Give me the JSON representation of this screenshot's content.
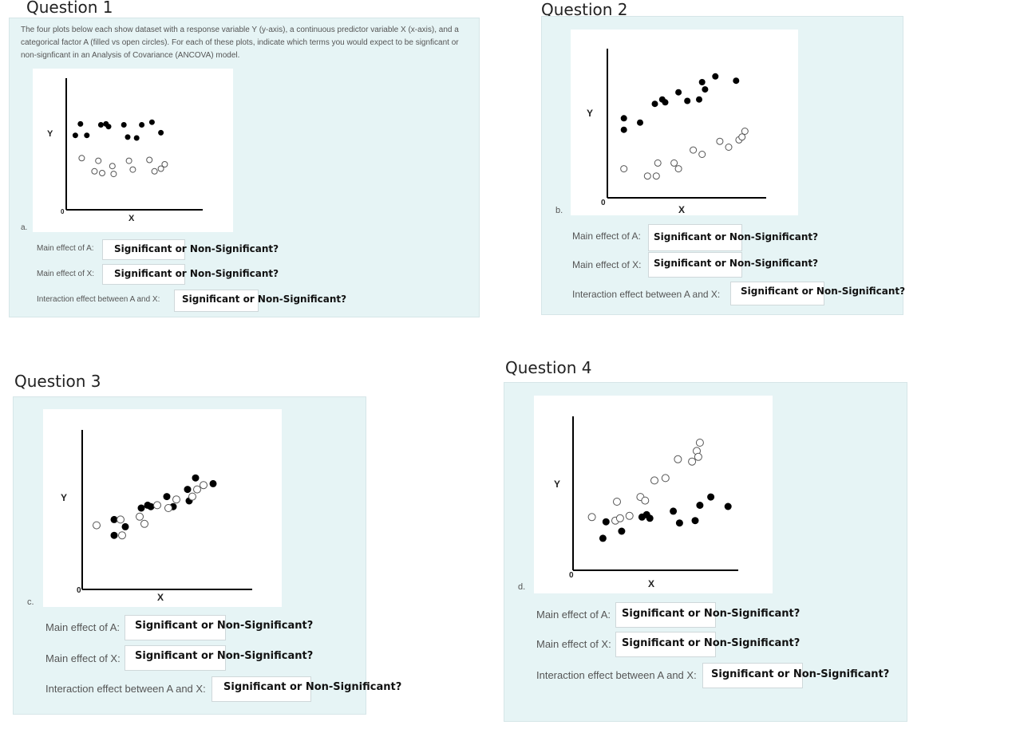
{
  "questions": [
    {
      "title": "Question 1",
      "intro": "The four plots below each show dataset with a response variable Y (y-axis), a continuous predictor variable X (x-axis), and a categorical factor A (filled vs open circles). For each of these plots, indicate which terms you would expect to be signficant or non-signficant in an Analysis of Covariance (ANCOVA) model.",
      "letter": "a.",
      "ylabel": "Y",
      "xlabel": "X",
      "zero": "0",
      "items": [
        {
          "label": "Main effect of A:",
          "answer": "Significant or Non-Significant?"
        },
        {
          "label": "Main effect of X:",
          "answer": "Significant or Non-Significant?"
        },
        {
          "label": "Interaction effect between A and X:",
          "answer": "Significant or Non-Significant?"
        }
      ]
    },
    {
      "title": "Question 2",
      "letter": "b.",
      "ylabel": "Y",
      "xlabel": "X",
      "zero": "0",
      "items": [
        {
          "label": "Main effect of A:",
          "answer": "Significant or Non-Significant?"
        },
        {
          "label": "Main effect of X:",
          "answer": "Significant or Non-Significant?"
        },
        {
          "label": "Interaction effect between A and X:",
          "answer": "Significant or Non-Significant?"
        }
      ]
    },
    {
      "title": "Question 3",
      "letter": "c.",
      "ylabel": "Y",
      "xlabel": "X",
      "zero": "0",
      "items": [
        {
          "label": "Main effect of A:",
          "answer": "Significant or Non-Significant?"
        },
        {
          "label": "Main effect of X:",
          "answer": "Significant or Non-Significant?"
        },
        {
          "label": "Interaction effect between A and X:",
          "answer": "Significant or Non-Significant?"
        }
      ]
    },
    {
      "title": "Question 4",
      "letter": "d.",
      "ylabel": "Y",
      "xlabel": "X",
      "zero": "0",
      "items": [
        {
          "label": "Main effect of A:",
          "answer": "Significant or Non-Significant?"
        },
        {
          "label": "Main effect of X:",
          "answer": "Significant or Non-Significant?"
        },
        {
          "label": "Interaction effect between A and X:",
          "answer": "Significant or Non-Significant?"
        }
      ]
    }
  ],
  "chart_data": [
    {
      "type": "scatter",
      "xlabel": "X",
      "ylabel": "Y",
      "xlim": [
        0,
        10
      ],
      "ylim": [
        0,
        10
      ],
      "series": [
        {
          "marker": "filled",
          "points": [
            [
              0.4,
              7.3
            ],
            [
              0.8,
              8.6
            ],
            [
              1.3,
              7.3
            ],
            [
              2.4,
              8.5
            ],
            [
              2.8,
              8.6
            ],
            [
              3.0,
              8.3
            ],
            [
              4.2,
              8.5
            ],
            [
              4.5,
              7.1
            ],
            [
              5.2,
              7.0
            ],
            [
              5.6,
              8.5
            ],
            [
              6.4,
              8.8
            ],
            [
              7.1,
              7.6
            ]
          ]
        },
        {
          "marker": "open",
          "points": [
            [
              0.9,
              4.7
            ],
            [
              1.9,
              3.2
            ],
            [
              2.2,
              4.4
            ],
            [
              2.5,
              3.0
            ],
            [
              3.3,
              3.8
            ],
            [
              3.4,
              2.9
            ],
            [
              4.6,
              4.4
            ],
            [
              4.9,
              3.4
            ],
            [
              6.2,
              4.5
            ],
            [
              6.6,
              3.2
            ],
            [
              7.1,
              3.5
            ],
            [
              7.4,
              4.0
            ]
          ]
        }
      ]
    },
    {
      "type": "scatter",
      "xlabel": "X",
      "ylabel": "Y",
      "xlim": [
        0,
        10
      ],
      "ylim": [
        0,
        10
      ],
      "series": [
        {
          "marker": "filled",
          "points": [
            [
              0.9,
              5.4
            ],
            [
              0.9,
              4.6
            ],
            [
              2.0,
              5.1
            ],
            [
              3.0,
              6.4
            ],
            [
              3.5,
              6.7
            ],
            [
              3.7,
              6.5
            ],
            [
              4.6,
              7.2
            ],
            [
              5.2,
              6.6
            ],
            [
              6.0,
              6.7
            ],
            [
              6.2,
              7.9
            ],
            [
              6.4,
              7.4
            ],
            [
              7.1,
              8.3
            ],
            [
              8.5,
              8.0
            ]
          ]
        },
        {
          "marker": "open",
          "points": [
            [
              0.9,
              1.9
            ],
            [
              2.5,
              1.4
            ],
            [
              3.2,
              2.3
            ],
            [
              3.1,
              1.4
            ],
            [
              4.3,
              2.3
            ],
            [
              4.6,
              1.9
            ],
            [
              5.6,
              3.2
            ],
            [
              6.2,
              2.9
            ],
            [
              7.4,
              3.8
            ],
            [
              8.0,
              3.4
            ],
            [
              8.7,
              3.9
            ],
            [
              8.9,
              4.1
            ],
            [
              9.1,
              4.5
            ]
          ]
        }
      ]
    },
    {
      "type": "scatter",
      "xlabel": "X",
      "ylabel": "Y",
      "xlim": [
        0,
        10
      ],
      "ylim": [
        0,
        10
      ],
      "series": [
        {
          "marker": "filled",
          "points": [
            [
              1.7,
              4.2
            ],
            [
              1.7,
              3.1
            ],
            [
              2.4,
              3.7
            ],
            [
              3.4,
              5.0
            ],
            [
              3.8,
              5.2
            ],
            [
              4.0,
              5.1
            ],
            [
              5.0,
              5.8
            ],
            [
              5.4,
              5.1
            ],
            [
              6.3,
              6.3
            ],
            [
              6.4,
              5.5
            ],
            [
              6.8,
              7.1
            ],
            [
              7.9,
              6.7
            ]
          ]
        },
        {
          "marker": "open",
          "points": [
            [
              0.6,
              3.8
            ],
            [
              2.1,
              4.2
            ],
            [
              2.2,
              3.1
            ],
            [
              3.3,
              4.4
            ],
            [
              3.6,
              3.9
            ],
            [
              4.4,
              5.2
            ],
            [
              5.1,
              5.0
            ],
            [
              5.6,
              5.6
            ],
            [
              6.6,
              5.8
            ],
            [
              6.9,
              6.3
            ],
            [
              7.3,
              6.6
            ]
          ]
        }
      ]
    },
    {
      "type": "scatter",
      "xlabel": "X",
      "ylabel": "Y",
      "xlim": [
        0,
        10
      ],
      "ylim": [
        0,
        10
      ],
      "series": [
        {
          "marker": "filled",
          "points": [
            [
              1.6,
              2.1
            ],
            [
              1.8,
              3.5
            ],
            [
              2.8,
              2.7
            ],
            [
              4.1,
              3.9
            ],
            [
              4.4,
              4.1
            ],
            [
              4.6,
              3.8
            ],
            [
              6.1,
              4.4
            ],
            [
              6.5,
              3.4
            ],
            [
              7.5,
              3.6
            ],
            [
              7.8,
              4.9
            ],
            [
              8.5,
              5.6
            ],
            [
              9.6,
              4.8
            ]
          ]
        },
        {
          "marker": "open",
          "points": [
            [
              0.9,
              3.9
            ],
            [
              2.4,
              3.6
            ],
            [
              2.5,
              5.2
            ],
            [
              2.7,
              3.8
            ],
            [
              3.3,
              4.0
            ],
            [
              4.0,
              5.6
            ],
            [
              4.3,
              5.3
            ],
            [
              4.9,
              7.0
            ],
            [
              5.6,
              7.2
            ],
            [
              6.4,
              8.8
            ],
            [
              7.3,
              8.6
            ],
            [
              7.6,
              9.5
            ],
            [
              7.7,
              9.0
            ],
            [
              7.8,
              10.2
            ]
          ]
        }
      ]
    }
  ]
}
